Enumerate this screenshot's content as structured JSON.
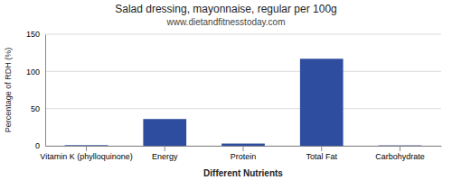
{
  "chart_data": {
    "type": "bar",
    "title": "Salad dressing, mayonnaise, regular per 100g",
    "subtitle": "www.dietandfitnesstoday.com",
    "xlabel": "Different Nutrients",
    "ylabel": "Percentage of RDH (%)",
    "categories": [
      "Vitamin K (phylloquinone)",
      "Energy",
      "Protein",
      "Total Fat",
      "Carbohydrate"
    ],
    "values": [
      0.8,
      36,
      3,
      117,
      0.5
    ],
    "color": "#2e4d9e",
    "ylim": [
      0,
      150
    ],
    "yticks": [
      0,
      50,
      100,
      150
    ],
    "grid": true
  }
}
